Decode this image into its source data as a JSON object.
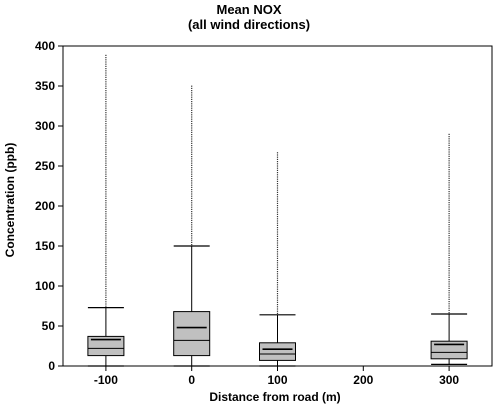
{
  "chart_data": {
    "type": "box",
    "title": "Mean NOX",
    "subtitle": "(all wind directions)",
    "xlabel": "Distance from road (m)",
    "ylabel": "Concentration (ppb)",
    "ylim": [
      0,
      400
    ],
    "yticks": [
      0,
      50,
      100,
      150,
      200,
      250,
      300,
      350,
      400
    ],
    "xticks": [
      -100,
      0,
      100,
      200,
      300
    ],
    "xlim": [
      -150,
      350
    ],
    "grid": false,
    "colors": {
      "box_fill": "#c0c0c0",
      "stroke": "#000000"
    },
    "boxes": [
      {
        "x": -100,
        "min": 0,
        "q1": 13,
        "median": 22,
        "mean": 33,
        "q3": 37,
        "whisker_high": 73,
        "outliers_from": 73,
        "max": 390
      },
      {
        "x": 0,
        "min": 0,
        "q1": 13,
        "median": 32,
        "mean": 48,
        "q3": 68,
        "whisker_high": 150,
        "outliers_from": 150,
        "max": 352
      },
      {
        "x": 100,
        "min": 0,
        "q1": 7,
        "median": 15,
        "mean": 21,
        "q3": 29,
        "whisker_high": 64,
        "outliers_from": 64,
        "max": 268
      },
      {
        "x": 300,
        "min": 2,
        "q1": 9,
        "median": 17,
        "mean": 27,
        "q3": 31,
        "whisker_high": 65,
        "outliers_from": 65,
        "max": 291
      }
    ]
  }
}
